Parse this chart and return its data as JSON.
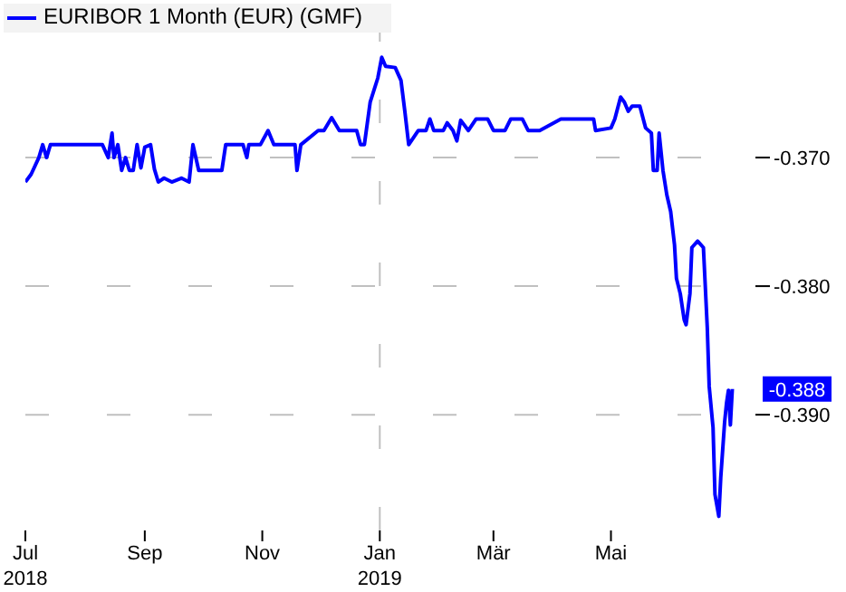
{
  "chart_data": {
    "type": "line",
    "legend": "top left",
    "grid": "y",
    "marker": "none",
    "line_style": "solid",
    "x": [
      "2018-07-01",
      "2018-07-04",
      "2018-07-08",
      "2018-07-10",
      "2018-07-12",
      "2018-07-14",
      "2018-08-10",
      "2018-08-13",
      "2018-08-15",
      "2018-08-16",
      "2018-08-18",
      "2018-08-20",
      "2018-08-22",
      "2018-08-24",
      "2018-08-26",
      "2018-08-28",
      "2018-08-30",
      "2018-09-01",
      "2018-09-04",
      "2018-09-06",
      "2018-09-08",
      "2018-09-11",
      "2018-09-15",
      "2018-09-20",
      "2018-09-24",
      "2018-09-26",
      "2018-09-29",
      "2018-10-11",
      "2018-10-13",
      "2018-10-22",
      "2018-10-24",
      "2018-10-25",
      "2018-10-31",
      "2018-11-04",
      "2018-11-07",
      "2018-11-18",
      "2018-11-19",
      "2018-11-21",
      "2018-11-30",
      "2018-12-03",
      "2018-12-07",
      "2018-12-11",
      "2018-12-20",
      "2018-12-22",
      "2018-12-24",
      "2018-12-27",
      "2018-12-31",
      "2019-01-02",
      "2019-01-04",
      "2019-01-09",
      "2019-01-12",
      "2019-01-14",
      "2019-01-16",
      "2019-01-21",
      "2019-01-25",
      "2019-01-27",
      "2019-01-29",
      "2019-02-03",
      "2019-02-05",
      "2019-02-08",
      "2019-02-10",
      "2019-02-12",
      "2019-02-16",
      "2019-02-20",
      "2019-02-26",
      "2019-03-01",
      "2019-03-07",
      "2019-03-10",
      "2019-03-16",
      "2019-03-19",
      "2019-03-25",
      "2019-04-05",
      "2019-04-22",
      "2019-04-23",
      "2019-05-01",
      "2019-05-03",
      "2019-05-06",
      "2019-05-08",
      "2019-05-10",
      "2019-05-12",
      "2019-05-16",
      "2019-05-19",
      "2019-05-22",
      "2019-05-23",
      "2019-05-25",
      "2019-05-26",
      "2019-05-28",
      "2019-05-30",
      "2019-06-01",
      "2019-06-03",
      "2019-06-04",
      "2019-06-06",
      "2019-06-08",
      "2019-06-09",
      "2019-06-11",
      "2019-06-12",
      "2019-06-15",
      "2019-06-18",
      "2019-06-20",
      "2019-06-21",
      "2019-06-23",
      "2019-06-24",
      "2019-06-26",
      "2019-06-27",
      "2019-06-29",
      "2019-06-30",
      "2019-07-01",
      "2019-07-02",
      "2019-07-03"
    ],
    "series": [
      {
        "name": "EURIBOR 1 Month (EUR) (GMF)",
        "color": "#0000ff",
        "values": [
          -0.3719,
          -0.3713,
          -0.37,
          -0.369,
          -0.37,
          -0.369,
          -0.369,
          -0.37,
          -0.3681,
          -0.37,
          -0.369,
          -0.371,
          -0.37,
          -0.371,
          -0.371,
          -0.369,
          -0.3708,
          -0.3692,
          -0.369,
          -0.3709,
          -0.3719,
          -0.3716,
          -0.3719,
          -0.3716,
          -0.3719,
          -0.369,
          -0.371,
          -0.371,
          -0.369,
          -0.369,
          -0.37,
          -0.369,
          -0.369,
          -0.3679,
          -0.369,
          -0.369,
          -0.371,
          -0.369,
          -0.3679,
          -0.3679,
          -0.3669,
          -0.3679,
          -0.3679,
          -0.369,
          -0.369,
          -0.3657,
          -0.3638,
          -0.3622,
          -0.3629,
          -0.363,
          -0.364,
          -0.3664,
          -0.369,
          -0.3679,
          -0.3679,
          -0.367,
          -0.3679,
          -0.3679,
          -0.3673,
          -0.3679,
          -0.3687,
          -0.3671,
          -0.3679,
          -0.367,
          -0.367,
          -0.3679,
          -0.3679,
          -0.367,
          -0.367,
          -0.3679,
          -0.3679,
          -0.367,
          -0.367,
          -0.3679,
          -0.3677,
          -0.367,
          -0.3653,
          -0.3657,
          -0.3664,
          -0.366,
          -0.366,
          -0.3677,
          -0.3681,
          -0.371,
          -0.371,
          -0.3681,
          -0.371,
          -0.3729,
          -0.3742,
          -0.3768,
          -0.3794,
          -0.3806,
          -0.3826,
          -0.383,
          -0.3806,
          -0.377,
          -0.3765,
          -0.377,
          -0.3832,
          -0.3878,
          -0.391,
          -0.3962,
          -0.3979,
          -0.3949,
          -0.3906,
          -0.3891,
          -0.3881,
          -0.3908,
          -0.388
        ]
      }
    ],
    "xlim": [
      "2018-07-01",
      "2019-07-15"
    ],
    "xticks": [
      {
        "value": "2018-07-01",
        "label": "Jul\n2018"
      },
      {
        "value": "2018-09-01",
        "label": "Sep"
      },
      {
        "value": "2018-11-01",
        "label": "Nov"
      },
      {
        "value": "2019-01-01",
        "label": "Jan\n2019"
      },
      {
        "value": "2019-03-01",
        "label": "Mär"
      },
      {
        "value": "2019-05-01",
        "label": "Mai"
      }
    ],
    "ylim": [
      -0.399,
      -0.36
    ],
    "yticks": [
      {
        "value": -0.37,
        "label": "-0.370"
      },
      {
        "value": -0.38,
        "label": "-0.380"
      },
      {
        "value": -0.39,
        "label": "-0.390"
      }
    ],
    "ref_lines": [
      {
        "axis": "x",
        "value": "2019-01-01",
        "color": "#c0c0c0",
        "line_style": "dashed"
      }
    ],
    "annotations": [
      {
        "text": "-0.388",
        "x": "2019-07-03",
        "y": -0.388
      }
    ]
  }
}
